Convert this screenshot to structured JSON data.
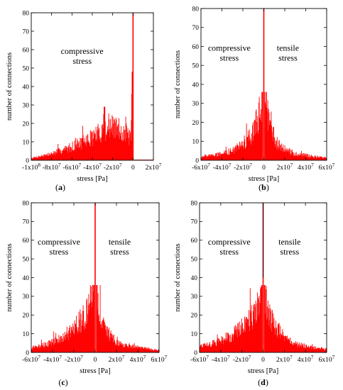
{
  "chart_data": [
    {
      "id": "a",
      "panel_label": "(a)",
      "type": "bar",
      "xlabel": "stress [Pa]",
      "ylabel": "number of connections",
      "xlim": [
        -100000000,
        20000000
      ],
      "ylim": [
        0,
        80
      ],
      "xticks": [
        -100000000,
        -80000000,
        -60000000,
        -40000000,
        -20000000,
        0,
        20000000
      ],
      "xtick_labels": [
        {
          "m": "-1x10",
          "e": "8"
        },
        {
          "m": "-8x10",
          "e": "7"
        },
        {
          "m": "-6x10",
          "e": "7"
        },
        {
          "m": "-4x10",
          "e": "7"
        },
        {
          "m": "-2x10",
          "e": "7"
        },
        {
          "m": "0",
          "e": ""
        },
        {
          "m": "2x10",
          "e": "7"
        }
      ],
      "yticks": [
        0,
        10,
        20,
        30,
        40,
        50,
        60,
        70,
        80
      ],
      "annotations": [
        {
          "text": [
            "compressive",
            "stress"
          ],
          "x": -50000000,
          "y": 60
        }
      ],
      "series": [
        {
          "color": "#ff0000",
          "shape": "skewed",
          "points": [
            [
              -100000000,
              1
            ],
            [
              -95000000,
              1.5
            ],
            [
              -90000000,
              2
            ],
            [
              -85000000,
              2.5
            ],
            [
              -80000000,
              3
            ],
            [
              -75000000,
              4
            ],
            [
              -70000000,
              4.5
            ],
            [
              -65000000,
              5.5
            ],
            [
              -60000000,
              6.5
            ],
            [
              -55000000,
              7.5
            ],
            [
              -50000000,
              8.5
            ],
            [
              -45000000,
              9.5
            ],
            [
              -40000000,
              11
            ],
            [
              -35000000,
              12.5
            ],
            [
              -30000000,
              14
            ],
            [
              -25000000,
              15
            ],
            [
              -20000000,
              15.5
            ],
            [
              -15000000,
              15
            ],
            [
              -10000000,
              14
            ],
            [
              -5000000,
              12
            ],
            [
              -2000000,
              10
            ],
            [
              0,
              80
            ],
            [
              500000,
              0
            ]
          ],
          "peak": {
            "x": 0,
            "y": 80
          },
          "spike_near_zero": 48,
          "max_secondary": {
            "x": -28000000,
            "y": 29
          }
        }
      ]
    },
    {
      "id": "b",
      "panel_label": "(b)",
      "type": "bar",
      "xlabel": "stress [Pa]",
      "ylabel": "number of connections",
      "xlim": [
        -60000000,
        60000000
      ],
      "ylim": [
        0,
        80
      ],
      "xticks": [
        -60000000,
        -40000000,
        -20000000,
        0,
        20000000,
        40000000,
        60000000
      ],
      "xtick_labels": [
        {
          "m": "-6x10",
          "e": "7"
        },
        {
          "m": "-4x10",
          "e": "7"
        },
        {
          "m": "-2x10",
          "e": "7"
        },
        {
          "m": "0",
          "e": ""
        },
        {
          "m": "2x10",
          "e": "7"
        },
        {
          "m": "4x10",
          "e": "7"
        },
        {
          "m": "6x10",
          "e": "7"
        }
      ],
      "yticks": [
        0,
        10,
        20,
        30,
        40,
        50,
        60,
        70,
        80
      ],
      "annotations": [
        {
          "text": [
            "compressive",
            "stress"
          ],
          "x": -33000000,
          "y": 60
        },
        {
          "text": [
            "tensile",
            "stress"
          ],
          "x": 23000000,
          "y": 60
        }
      ],
      "series": [
        {
          "color": "#ff0000",
          "shape": "peaked",
          "points": [
            [
              -60000000,
              1.5
            ],
            [
              -45000000,
              2.5
            ],
            [
              -30000000,
              4.5
            ],
            [
              -20000000,
              7
            ],
            [
              -10000000,
              13
            ],
            [
              -5000000,
              20
            ],
            [
              -2000000,
              30
            ],
            [
              0,
              80
            ],
            [
              2000000,
              27
            ],
            [
              5000000,
              16
            ],
            [
              10000000,
              9
            ],
            [
              20000000,
              5
            ],
            [
              30000000,
              3
            ],
            [
              45000000,
              2
            ],
            [
              60000000,
              1
            ]
          ],
          "peak": {
            "x": 0,
            "y": 80
          }
        }
      ]
    },
    {
      "id": "c",
      "panel_label": "(c)",
      "type": "bar",
      "xlabel": "stress [Pa]",
      "ylabel": "number of connections",
      "xlim": [
        -60000000,
        60000000
      ],
      "ylim": [
        0,
        80
      ],
      "xticks": [
        -60000000,
        -40000000,
        -20000000,
        0,
        20000000,
        40000000,
        60000000
      ],
      "xtick_labels": [
        {
          "m": "-6x10",
          "e": "7"
        },
        {
          "m": "-4x10",
          "e": "7"
        },
        {
          "m": "-2x10",
          "e": "7"
        },
        {
          "m": "0",
          "e": ""
        },
        {
          "m": "2x10",
          "e": "7"
        },
        {
          "m": "4x10",
          "e": "7"
        },
        {
          "m": "6x10",
          "e": "7"
        }
      ],
      "yticks": [
        0,
        10,
        20,
        30,
        40,
        50,
        60,
        70,
        80
      ],
      "annotations": [
        {
          "text": [
            "compressive",
            "stress"
          ],
          "x": -34000000,
          "y": 60
        },
        {
          "text": [
            "tensile",
            "stress"
          ],
          "x": 23000000,
          "y": 60
        }
      ],
      "series": [
        {
          "color": "#ff0000",
          "shape": "peaked",
          "points": [
            [
              -60000000,
              2
            ],
            [
              -45000000,
              4
            ],
            [
              -30000000,
              7
            ],
            [
              -20000000,
              11
            ],
            [
              -10000000,
              17
            ],
            [
              -5000000,
              22
            ],
            [
              -2000000,
              30
            ],
            [
              0,
              80
            ],
            [
              2000000,
              28
            ],
            [
              5000000,
              17
            ],
            [
              10000000,
              10
            ],
            [
              20000000,
              5
            ],
            [
              30000000,
              3
            ],
            [
              45000000,
              2
            ],
            [
              60000000,
              1
            ]
          ],
          "peak": {
            "x": 0,
            "y": 80
          },
          "max_secondary": {
            "x": -1000000,
            "y": 36
          }
        }
      ]
    },
    {
      "id": "d",
      "panel_label": "(d)",
      "type": "bar",
      "xlabel": "stress [Pa]",
      "ylabel": "number of connections",
      "xlim": [
        -60000000,
        60000000
      ],
      "ylim": [
        0,
        80
      ],
      "xticks": [
        -60000000,
        -40000000,
        -20000000,
        0,
        20000000,
        40000000,
        60000000
      ],
      "xtick_labels": [
        {
          "m": "-6x10",
          "e": "7"
        },
        {
          "m": "-4x10",
          "e": "7"
        },
        {
          "m": "-2x10",
          "e": "7"
        },
        {
          "m": "0",
          "e": ""
        },
        {
          "m": "2x10",
          "e": "7"
        },
        {
          "m": "4x10",
          "e": "7"
        },
        {
          "m": "6x10",
          "e": "7"
        }
      ],
      "yticks": [
        0,
        10,
        20,
        30,
        40,
        50,
        60,
        70,
        80
      ],
      "annotations": [
        {
          "text": [
            "compressive",
            "stress"
          ],
          "x": -32000000,
          "y": 60
        },
        {
          "text": [
            "tensile",
            "stress"
          ],
          "x": 25000000,
          "y": 60
        }
      ],
      "series": [
        {
          "color": "#ff0000",
          "shape": "peaked",
          "points": [
            [
              -60000000,
              2.5
            ],
            [
              -45000000,
              4.5
            ],
            [
              -30000000,
              8
            ],
            [
              -20000000,
              12
            ],
            [
              -10000000,
              17
            ],
            [
              -5000000,
              21
            ],
            [
              -2000000,
              25
            ],
            [
              0,
              80
            ],
            [
              2000000,
              25
            ],
            [
              5000000,
              19
            ],
            [
              10000000,
              13
            ],
            [
              20000000,
              7
            ],
            [
              30000000,
              4
            ],
            [
              45000000,
              2.5
            ],
            [
              60000000,
              1.5
            ]
          ],
          "peak": {
            "x": 0,
            "y": 80
          },
          "peak_color": "#000000",
          "max_secondary": {
            "x": -2000000,
            "y": 35
          }
        }
      ]
    }
  ]
}
